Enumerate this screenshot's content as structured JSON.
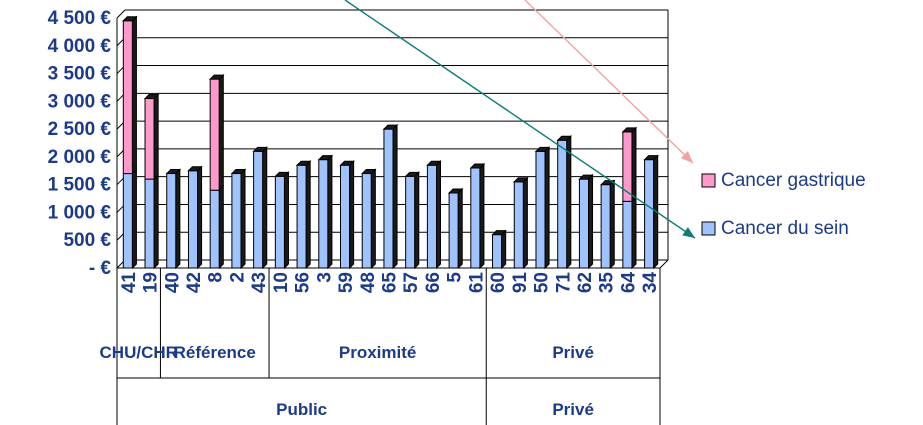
{
  "chart_data": {
    "type": "bar",
    "stacked": true,
    "categories": [
      "41",
      "19",
      "40",
      "42",
      "8",
      "2",
      "43",
      "10",
      "56",
      "3",
      "59",
      "48",
      "65",
      "57",
      "66",
      "5",
      "61",
      "60",
      "91",
      "50",
      "71",
      "62",
      "35",
      "64",
      "34"
    ],
    "series": [
      {
        "name": "Cancer du sein",
        "values": [
          1700,
          1600,
          1700,
          1750,
          1400,
          1700,
          2100,
          1650,
          1850,
          1950,
          1850,
          1700,
          2500,
          1650,
          1850,
          1350,
          1800,
          600,
          1550,
          2100,
          2300,
          1600,
          1500,
          1200,
          1950
        ],
        "color": "#9ec3ff"
      },
      {
        "name": "Cancer gastrique",
        "values": [
          2750,
          1450,
          0,
          0,
          2000,
          0,
          0,
          0,
          0,
          0,
          0,
          0,
          0,
          0,
          0,
          0,
          0,
          0,
          0,
          0,
          0,
          0,
          0,
          1250,
          0
        ],
        "color": "#ff99cc"
      }
    ],
    "y_tick_labels": [
      "-       €",
      "500 €",
      "1 000 €",
      "1 500 €",
      "2 000 €",
      "2 500 €",
      "3 000 €",
      "3 500 €",
      "4 000 €",
      "4 500 €"
    ],
    "ylim": [
      0,
      4500
    ],
    "grid": true,
    "legend_position": "right",
    "group_level1": [
      {
        "label": "CHU/CHR",
        "from": 0,
        "to": 1
      },
      {
        "label": "Référence",
        "from": 2,
        "to": 6
      },
      {
        "label": "Proximité",
        "from": 7,
        "to": 16
      },
      {
        "label": "Privé",
        "from": 17,
        "to": 24
      }
    ],
    "group_level2": [
      {
        "label": "Public",
        "from": 0,
        "to": 16
      },
      {
        "label": "Privé",
        "from": 17,
        "to": 24
      }
    ]
  },
  "colors": {
    "text": "#1a3a8c",
    "arrow_pink": "#f4a0a0",
    "arrow_teal": "#0a7d78"
  }
}
